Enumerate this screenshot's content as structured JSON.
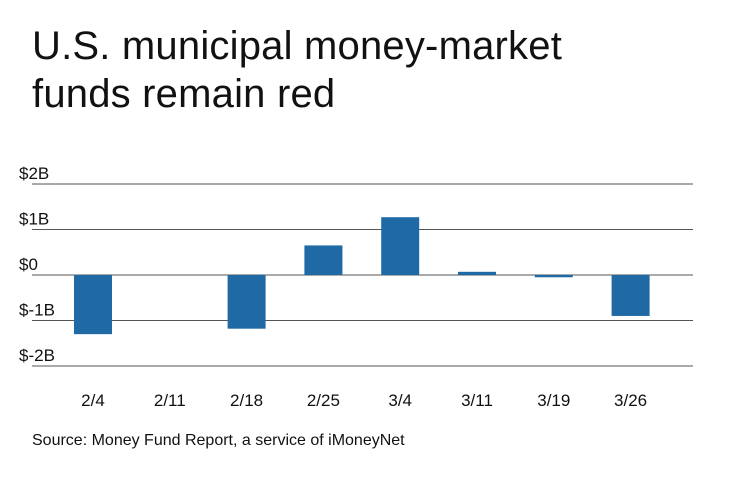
{
  "title": {
    "line1": "U.S. municipal money-market",
    "line2": "funds remain red"
  },
  "source": "Source: Money Fund Report, a service of iMoneyNet",
  "colors": {
    "bar": "#1f6aa5",
    "gridline": "#555555",
    "text": "#111111"
  },
  "chart_data": {
    "type": "bar",
    "title": "U.S. municipal money-market funds remain red",
    "xlabel": "",
    "ylabel": "",
    "categories": [
      "2/4",
      "2/11",
      "2/18",
      "2/25",
      "3/4",
      "3/11",
      "3/19",
      "3/26"
    ],
    "values": [
      -1.3,
      0,
      -1.18,
      0.65,
      1.27,
      0.07,
      -0.05,
      -0.9
    ],
    "unit": "billions of dollars",
    "ylim": [
      -2,
      2
    ],
    "yticks": [
      2,
      1,
      0,
      -1,
      -2
    ],
    "ytick_labels": [
      "$2B",
      "$1B",
      "$0",
      "$-1B",
      "$-2B"
    ],
    "grid": true,
    "legend": "none"
  }
}
